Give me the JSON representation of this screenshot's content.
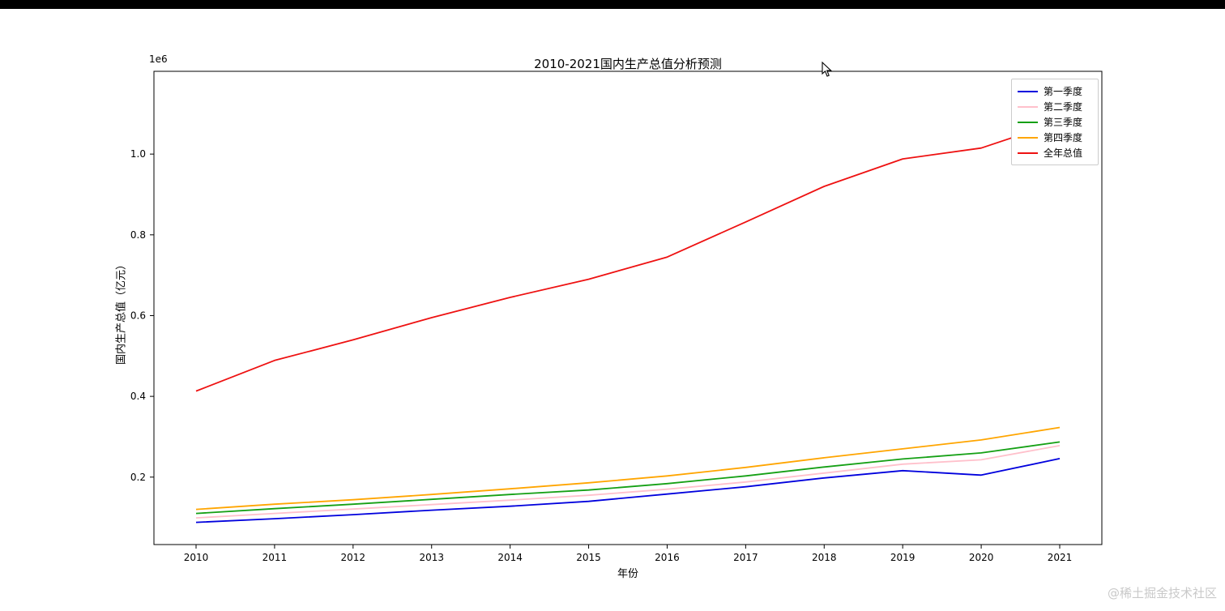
{
  "window": {
    "top_bar_color": "#000000"
  },
  "watermark": "@稀土掘金技术社区",
  "chart_data": {
    "type": "line",
    "title": "2010-2021国内生产总值分析预测",
    "xlabel": "年份",
    "ylabel": "国内生产总值（亿元）",
    "offset_label": "1e6",
    "grid": false,
    "legend_position": "upper right",
    "x": [
      2010,
      2011,
      2012,
      2013,
      2014,
      2015,
      2016,
      2017,
      2018,
      2019,
      2020,
      2021
    ],
    "ylim": [
      0.033,
      1.205
    ],
    "yticks": [
      0.2,
      0.4,
      0.6,
      0.8,
      1.0
    ],
    "series": [
      {
        "name": "第一季度",
        "color": "#0000dd",
        "values": [
          88000,
          97000,
          107000,
          118000,
          128000,
          140000,
          158000,
          176000,
          198000,
          216000,
          205000,
          246000
        ]
      },
      {
        "name": "第二季度",
        "color": "#ffc0cb",
        "values": [
          99000,
          110000,
          121000,
          132000,
          143000,
          155000,
          170000,
          188000,
          210000,
          232000,
          243000,
          278000
        ]
      },
      {
        "name": "第三季度",
        "color": "#15a015",
        "values": [
          110000,
          122000,
          133000,
          145000,
          157000,
          168000,
          184000,
          203000,
          225000,
          245000,
          260000,
          287000
        ]
      },
      {
        "name": "第四季度",
        "color": "#ffa500",
        "values": [
          120000,
          133000,
          144000,
          157000,
          171000,
          186000,
          203000,
          224000,
          248000,
          270000,
          292000,
          323000
        ]
      },
      {
        "name": "全年总值",
        "color": "#ee1111",
        "values": [
          413000,
          489000,
          540000,
          595000,
          645000,
          690000,
          745000,
          832000,
          920000,
          988000,
          1015000,
          1080000
        ]
      }
    ]
  }
}
